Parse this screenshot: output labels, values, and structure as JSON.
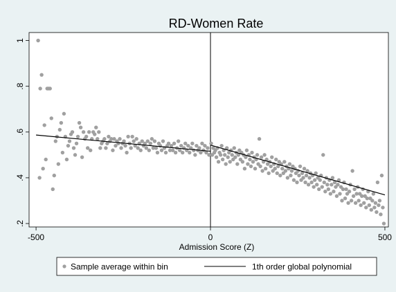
{
  "chart_data": {
    "type": "scatter",
    "title": "RD-Women Rate",
    "xlabel": "Admission Score (Z)",
    "ylabel": "",
    "xlim": [
      -520,
      510
    ],
    "ylim": [
      0.185,
      1.035
    ],
    "x_ticks": [
      -500,
      0,
      500
    ],
    "x_tick_labels": [
      "-500",
      "0",
      "500"
    ],
    "y_ticks": [
      0.2,
      0.4,
      0.6,
      0.8,
      1.0
    ],
    "y_tick_labels": [
      ".2",
      ".4",
      ".6",
      ".8",
      "1"
    ],
    "cutoff": 0,
    "grid": false,
    "legend_position": "bottom",
    "legend": [
      {
        "label": "Sample average within bin",
        "kind": "marker",
        "color": "#a0a0a0"
      },
      {
        "label": "1th order global polynomial",
        "kind": "line",
        "color": "#000000"
      }
    ],
    "series": [
      {
        "name": "Sample average within bin",
        "type": "scatter",
        "color": "#a0a0a0",
        "points": [
          [
            -494,
            1.0
          ],
          [
            -490,
            0.4
          ],
          [
            -488,
            0.79
          ],
          [
            -484,
            0.85
          ],
          [
            -480,
            0.44
          ],
          [
            -476,
            0.63
          ],
          [
            -472,
            0.48
          ],
          [
            -468,
            0.79
          ],
          [
            -464,
            0.79
          ],
          [
            -460,
            0.79
          ],
          [
            -456,
            0.66
          ],
          [
            -452,
            0.35
          ],
          [
            -448,
            0.41
          ],
          [
            -444,
            0.56
          ],
          [
            -440,
            0.58
          ],
          [
            -436,
            0.46
          ],
          [
            -432,
            0.61
          ],
          [
            -428,
            0.64
          ],
          [
            -424,
            0.51
          ],
          [
            -420,
            0.68
          ],
          [
            -416,
            0.58
          ],
          [
            -412,
            0.48
          ],
          [
            -408,
            0.54
          ],
          [
            -404,
            0.56
          ],
          [
            -400,
            0.59
          ],
          [
            -396,
            0.6
          ],
          [
            -392,
            0.53
          ],
          [
            -388,
            0.5
          ],
          [
            -384,
            0.55
          ],
          [
            -380,
            0.58
          ],
          [
            -376,
            0.64
          ],
          [
            -372,
            0.62
          ],
          [
            -368,
            0.49
          ],
          [
            -364,
            0.6
          ],
          [
            -360,
            0.57
          ],
          [
            -356,
            0.58
          ],
          [
            -352,
            0.53
          ],
          [
            -348,
            0.6
          ],
          [
            -344,
            0.52
          ],
          [
            -340,
            0.57
          ],
          [
            -336,
            0.6
          ],
          [
            -332,
            0.59
          ],
          [
            -328,
            0.62
          ],
          [
            -324,
            0.57
          ],
          [
            -320,
            0.6
          ],
          [
            -316,
            0.53
          ],
          [
            -312,
            0.55
          ],
          [
            -308,
            0.56
          ],
          [
            -304,
            0.57
          ],
          [
            -300,
            0.53
          ],
          [
            -296,
            0.55
          ],
          [
            -292,
            0.58
          ],
          [
            -288,
            0.56
          ],
          [
            -284,
            0.57
          ],
          [
            -280,
            0.52
          ],
          [
            -276,
            0.57
          ],
          [
            -272,
            0.54
          ],
          [
            -268,
            0.56
          ],
          [
            -264,
            0.55
          ],
          [
            -260,
            0.57
          ],
          [
            -256,
            0.53
          ],
          [
            -252,
            0.55
          ],
          [
            -248,
            0.56
          ],
          [
            -244,
            0.54
          ],
          [
            -240,
            0.51
          ],
          [
            -236,
            0.58
          ],
          [
            -232,
            0.55
          ],
          [
            -228,
            0.53
          ],
          [
            -224,
            0.58
          ],
          [
            -220,
            0.56
          ],
          [
            -216,
            0.54
          ],
          [
            -212,
            0.57
          ],
          [
            -208,
            0.53
          ],
          [
            -204,
            0.55
          ],
          [
            -200,
            0.52
          ],
          [
            -196,
            0.56
          ],
          [
            -192,
            0.54
          ],
          [
            -188,
            0.55
          ],
          [
            -184,
            0.53
          ],
          [
            -180,
            0.56
          ],
          [
            -176,
            0.52
          ],
          [
            -172,
            0.55
          ],
          [
            -168,
            0.57
          ],
          [
            -164,
            0.53
          ],
          [
            -160,
            0.56
          ],
          [
            -156,
            0.53
          ],
          [
            -152,
            0.51
          ],
          [
            -148,
            0.55
          ],
          [
            -144,
            0.54
          ],
          [
            -140,
            0.52
          ],
          [
            -136,
            0.56
          ],
          [
            -132,
            0.53
          ],
          [
            -128,
            0.51
          ],
          [
            -124,
            0.54
          ],
          [
            -120,
            0.55
          ],
          [
            -116,
            0.52
          ],
          [
            -112,
            0.54
          ],
          [
            -108,
            0.52
          ],
          [
            -104,
            0.55
          ],
          [
            -100,
            0.51
          ],
          [
            -96,
            0.53
          ],
          [
            -92,
            0.56
          ],
          [
            -88,
            0.52
          ],
          [
            -84,
            0.54
          ],
          [
            -80,
            0.51
          ],
          [
            -76,
            0.53
          ],
          [
            -72,
            0.55
          ],
          [
            -68,
            0.52
          ],
          [
            -64,
            0.54
          ],
          [
            -60,
            0.51
          ],
          [
            -56,
            0.53
          ],
          [
            -52,
            0.55
          ],
          [
            -48,
            0.52
          ],
          [
            -44,
            0.5
          ],
          [
            -40,
            0.54
          ],
          [
            -36,
            0.52
          ],
          [
            -32,
            0.53
          ],
          [
            -28,
            0.51
          ],
          [
            -24,
            0.55
          ],
          [
            -20,
            0.52
          ],
          [
            -16,
            0.54
          ],
          [
            -12,
            0.51
          ],
          [
            -8,
            0.53
          ],
          [
            -4,
            0.5
          ],
          [
            2,
            0.55
          ],
          [
            5,
            0.5
          ],
          [
            8,
            0.53
          ],
          [
            11,
            0.51
          ],
          [
            14,
            0.52
          ],
          [
            17,
            0.49
          ],
          [
            20,
            0.53
          ],
          [
            23,
            0.47
          ],
          [
            26,
            0.51
          ],
          [
            29,
            0.5
          ],
          [
            32,
            0.54
          ],
          [
            35,
            0.48
          ],
          [
            38,
            0.52
          ],
          [
            41,
            0.5
          ],
          [
            44,
            0.46
          ],
          [
            47,
            0.53
          ],
          [
            50,
            0.49
          ],
          [
            53,
            0.51
          ],
          [
            56,
            0.47
          ],
          [
            59,
            0.52
          ],
          [
            62,
            0.5
          ],
          [
            65,
            0.48
          ],
          [
            68,
            0.53
          ],
          [
            71,
            0.49
          ],
          [
            74,
            0.51
          ],
          [
            77,
            0.46
          ],
          [
            80,
            0.5
          ],
          [
            83,
            0.52
          ],
          [
            86,
            0.48
          ],
          [
            89,
            0.51
          ],
          [
            92,
            0.47
          ],
          [
            95,
            0.5
          ],
          [
            98,
            0.44
          ],
          [
            101,
            0.49
          ],
          [
            104,
            0.52
          ],
          [
            107,
            0.46
          ],
          [
            110,
            0.5
          ],
          [
            113,
            0.48
          ],
          [
            116,
            0.45
          ],
          [
            119,
            0.51
          ],
          [
            122,
            0.47
          ],
          [
            125,
            0.49
          ],
          [
            128,
            0.44
          ],
          [
            131,
            0.48
          ],
          [
            134,
            0.5
          ],
          [
            137,
            0.46
          ],
          [
            140,
            0.57
          ],
          [
            143,
            0.45
          ],
          [
            146,
            0.49
          ],
          [
            149,
            0.43
          ],
          [
            152,
            0.47
          ],
          [
            155,
            0.5
          ],
          [
            158,
            0.44
          ],
          [
            161,
            0.48
          ],
          [
            164,
            0.46
          ],
          [
            167,
            0.42
          ],
          [
            170,
            0.47
          ],
          [
            173,
            0.45
          ],
          [
            176,
            0.49
          ],
          [
            179,
            0.43
          ],
          [
            182,
            0.46
          ],
          [
            185,
            0.44
          ],
          [
            188,
            0.48
          ],
          [
            191,
            0.42
          ],
          [
            194,
            0.45
          ],
          [
            197,
            0.47
          ],
          [
            200,
            0.41
          ],
          [
            203,
            0.46
          ],
          [
            206,
            0.44
          ],
          [
            209,
            0.42
          ],
          [
            212,
            0.47
          ],
          [
            215,
            0.43
          ],
          [
            218,
            0.45
          ],
          [
            221,
            0.4
          ],
          [
            224,
            0.44
          ],
          [
            227,
            0.46
          ],
          [
            230,
            0.41
          ],
          [
            233,
            0.43
          ],
          [
            236,
            0.45
          ],
          [
            239,
            0.39
          ],
          [
            242,
            0.44
          ],
          [
            245,
            0.42
          ],
          [
            248,
            0.38
          ],
          [
            251,
            0.43
          ],
          [
            254,
            0.41
          ],
          [
            257,
            0.45
          ],
          [
            260,
            0.39
          ],
          [
            263,
            0.42
          ],
          [
            266,
            0.4
          ],
          [
            269,
            0.44
          ],
          [
            272,
            0.38
          ],
          [
            275,
            0.41
          ],
          [
            278,
            0.43
          ],
          [
            281,
            0.37
          ],
          [
            284,
            0.4
          ],
          [
            287,
            0.42
          ],
          [
            290,
            0.38
          ],
          [
            293,
            0.41
          ],
          [
            296,
            0.36
          ],
          [
            299,
            0.39
          ],
          [
            302,
            0.42
          ],
          [
            305,
            0.37
          ],
          [
            308,
            0.4
          ],
          [
            311,
            0.35
          ],
          [
            314,
            0.39
          ],
          [
            317,
            0.41
          ],
          [
            320,
            0.36
          ],
          [
            323,
            0.5
          ],
          [
            326,
            0.38
          ],
          [
            329,
            0.34
          ],
          [
            332,
            0.4
          ],
          [
            335,
            0.37
          ],
          [
            338,
            0.35
          ],
          [
            341,
            0.39
          ],
          [
            344,
            0.33
          ],
          [
            347,
            0.37
          ],
          [
            350,
            0.4
          ],
          [
            353,
            0.34
          ],
          [
            356,
            0.38
          ],
          [
            359,
            0.36
          ],
          [
            362,
            0.32
          ],
          [
            365,
            0.37
          ],
          [
            368,
            0.39
          ],
          [
            371,
            0.33
          ],
          [
            374,
            0.36
          ],
          [
            377,
            0.3
          ],
          [
            380,
            0.35
          ],
          [
            383,
            0.38
          ],
          [
            386,
            0.31
          ],
          [
            389,
            0.35
          ],
          [
            392,
            0.33
          ],
          [
            395,
            0.29
          ],
          [
            398,
            0.34
          ],
          [
            401,
            0.37
          ],
          [
            404,
            0.3
          ],
          [
            407,
            0.43
          ],
          [
            410,
            0.32
          ],
          [
            413,
            0.35
          ],
          [
            416,
            0.29
          ],
          [
            419,
            0.33
          ],
          [
            422,
            0.36
          ],
          [
            425,
            0.3
          ],
          [
            428,
            0.33
          ],
          [
            431,
            0.28
          ],
          [
            434,
            0.32
          ],
          [
            437,
            0.35
          ],
          [
            440,
            0.29
          ],
          [
            443,
            0.32
          ],
          [
            446,
            0.27
          ],
          [
            449,
            0.31
          ],
          [
            452,
            0.34
          ],
          [
            455,
            0.28
          ],
          [
            458,
            0.31
          ],
          [
            461,
            0.26
          ],
          [
            464,
            0.3
          ],
          [
            467,
            0.33
          ],
          [
            470,
            0.27
          ],
          [
            473,
            0.29
          ],
          [
            476,
            0.25
          ],
          [
            479,
            0.38
          ],
          [
            482,
            0.28
          ],
          [
            485,
            0.3
          ],
          [
            488,
            0.24
          ],
          [
            491,
            0.41
          ],
          [
            494,
            0.27
          ],
          [
            497,
            0.2
          ]
        ]
      },
      {
        "name": "1th order global polynomial",
        "type": "line",
        "color": "#000000",
        "left_segment": [
          [
            -500,
            0.587
          ],
          [
            0,
            0.516
          ]
        ],
        "right_segment": [
          [
            0,
            0.543
          ],
          [
            500,
            0.325
          ]
        ]
      }
    ]
  }
}
